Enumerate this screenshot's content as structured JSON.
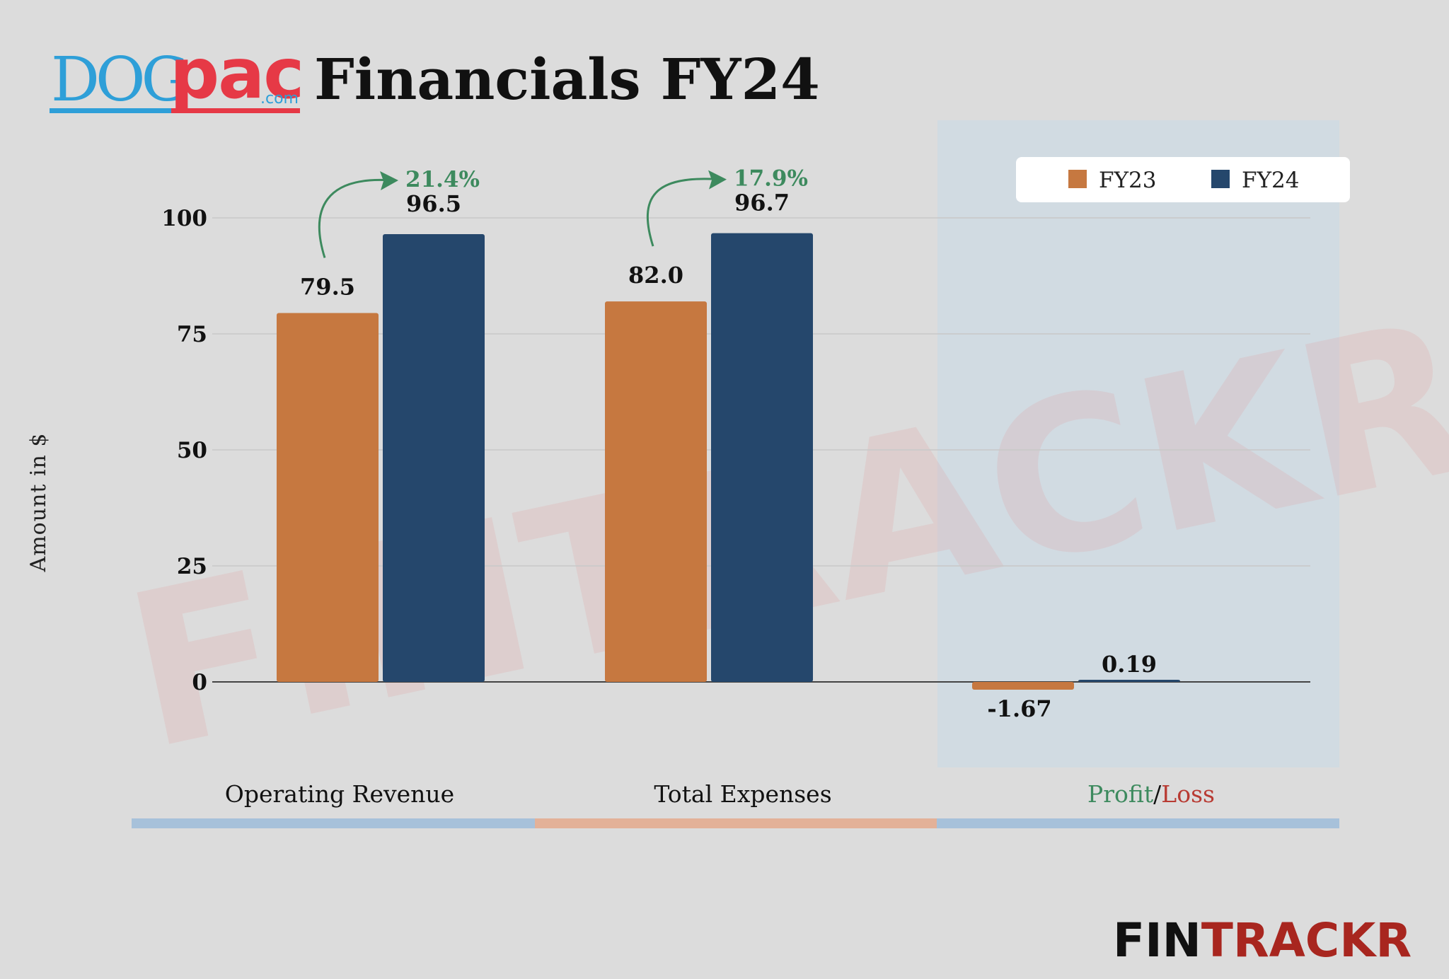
{
  "header": {
    "logo_part1": "DOG",
    "logo_part2": "pac",
    "logo_part3": ".com",
    "title": "Financials FY24"
  },
  "watermark": "FINTRACKR",
  "brand": {
    "part1": "FIN",
    "part2": "TRACKR"
  },
  "colors": {
    "fy23": "#c67840",
    "fy24": "#25476c",
    "positive": "#3d8a5e",
    "negative": "#b83a32",
    "band_blue": "#a7c1da",
    "band_orange": "#e3b198",
    "highlight_panel": "#cfdae3",
    "logo_blue": "#2e9fd8",
    "logo_red": "#e63946",
    "brand_red": "#a8261f"
  },
  "chart_data": {
    "type": "bar",
    "title": "Financials FY24",
    "ylabel": "Amount in $",
    "xlabel": "",
    "ylim": [
      -15,
      110
    ],
    "yticks": [
      0,
      25,
      50,
      75,
      100
    ],
    "grid": true,
    "legend_position": "top-right",
    "categories": [
      "Operating Revenue",
      "Total Expenses",
      "Profit/Loss"
    ],
    "category_parts": {
      "profit_label": "Profit",
      "separator": "/",
      "loss_label": "Loss"
    },
    "series": [
      {
        "name": "FY23",
        "values": [
          79.5,
          82.0,
          -1.67
        ],
        "labels": [
          "79.5",
          "82.0",
          "-1.67"
        ]
      },
      {
        "name": "FY24",
        "values": [
          96.5,
          96.7,
          0.19
        ],
        "labels": [
          "96.5",
          "96.7",
          "0.19"
        ]
      }
    ],
    "growth_annotations": [
      {
        "category": "Operating Revenue",
        "text": "21.4%"
      },
      {
        "category": "Total Expenses",
        "text": "17.9%"
      }
    ]
  }
}
